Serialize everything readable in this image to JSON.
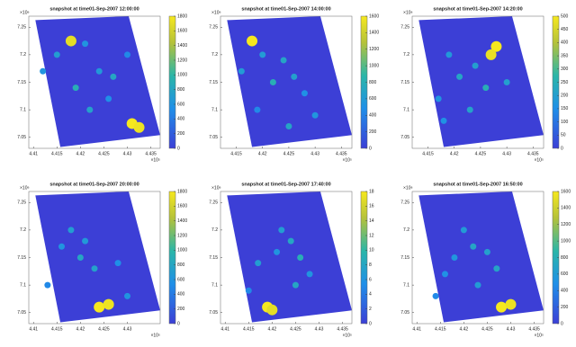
{
  "chart_data": [
    {
      "type": "scatter",
      "title": "snapshot at time01-Sep-2007 12:00:00",
      "x_exponent": "×10⁵",
      "y_exponent": "×10⁶",
      "xlim": [
        4.409,
        4.437
      ],
      "ylim": [
        7.03,
        7.27
      ],
      "xticks": [
        4.41,
        4.415,
        4.42,
        4.425,
        4.43,
        4.435
      ],
      "yticks": [
        7.05,
        7.1,
        7.15,
        7.2,
        7.25
      ],
      "clim": [
        0,
        1800
      ],
      "cticks": [
        0,
        200,
        400,
        600,
        800,
        1000,
        1200,
        1400,
        1600,
        1800
      ],
      "x": [
        4.431,
        4.4325,
        4.418,
        4.421,
        4.415,
        4.424,
        4.427,
        4.419,
        4.412,
        4.426,
        4.422,
        4.43
      ],
      "y": [
        7.075,
        7.068,
        7.225,
        7.22,
        7.2,
        7.17,
        7.16,
        7.14,
        7.17,
        7.12,
        7.1,
        7.2
      ],
      "values": [
        1800,
        1750,
        1700,
        600,
        700,
        650,
        800,
        900,
        600,
        550,
        750,
        500
      ]
    },
    {
      "type": "scatter",
      "title": "snapshot at time01-Sep-2007 14:00:00",
      "x_exponent": "×10⁵",
      "y_exponent": "×10⁶",
      "xlim": [
        4.412,
        4.437
      ],
      "ylim": [
        7.03,
        7.27
      ],
      "xticks": [
        4.415,
        4.42,
        4.425,
        4.43,
        4.435
      ],
      "yticks": [
        7.05,
        7.1,
        7.15,
        7.2,
        7.25
      ],
      "clim": [
        0,
        1600
      ],
      "cticks": [
        0,
        200,
        400,
        600,
        800,
        1000,
        1200,
        1400,
        1600
      ],
      "x": [
        4.418,
        4.42,
        4.424,
        4.426,
        4.422,
        4.428,
        4.416,
        4.43,
        4.425,
        4.419
      ],
      "y": [
        7.225,
        7.2,
        7.19,
        7.16,
        7.15,
        7.13,
        7.17,
        7.09,
        7.07,
        7.1
      ],
      "values": [
        1600,
        600,
        700,
        650,
        800,
        500,
        600,
        550,
        700,
        450
      ]
    },
    {
      "type": "scatter",
      "title": "snapshot at time01-Sep-2007 14:20:00",
      "x_exponent": "×10⁵",
      "y_exponent": "×10⁶",
      "xlim": [
        4.412,
        4.437
      ],
      "ylim": [
        7.03,
        7.27
      ],
      "xticks": [
        4.415,
        4.42,
        4.425,
        4.43,
        4.435
      ],
      "yticks": [
        7.05,
        7.1,
        7.15,
        7.2,
        7.25
      ],
      "clim": [
        0,
        500
      ],
      "cticks": [
        0,
        50,
        100,
        150,
        200,
        250,
        300,
        350,
        400,
        450,
        500
      ],
      "x": [
        4.428,
        4.427,
        4.424,
        4.421,
        4.419,
        4.426,
        4.43,
        4.417,
        4.423,
        4.418
      ],
      "y": [
        7.215,
        7.2,
        7.18,
        7.16,
        7.2,
        7.14,
        7.15,
        7.12,
        7.1,
        7.08
      ],
      "values": [
        500,
        480,
        200,
        220,
        180,
        250,
        200,
        170,
        210,
        160
      ]
    },
    {
      "type": "scatter",
      "title": "snapshot at time01-Sep-2007 20:00:00",
      "x_exponent": "×10⁵",
      "y_exponent": "×10⁶",
      "xlim": [
        4.409,
        4.437
      ],
      "ylim": [
        7.03,
        7.27
      ],
      "xticks": [
        4.41,
        4.415,
        4.42,
        4.425,
        4.43
      ],
      "yticks": [
        7.05,
        7.1,
        7.15,
        7.2,
        7.25
      ],
      "clim": [
        0,
        1800
      ],
      "cticks": [
        0,
        200,
        400,
        600,
        800,
        1000,
        1200,
        1400,
        1600,
        1800
      ],
      "x": [
        4.424,
        4.426,
        4.418,
        4.421,
        4.42,
        4.416,
        4.423,
        4.428,
        4.413,
        4.43
      ],
      "y": [
        7.06,
        7.065,
        7.2,
        7.18,
        7.15,
        7.17,
        7.13,
        7.14,
        7.1,
        7.08
      ],
      "values": [
        1800,
        1750,
        700,
        650,
        800,
        600,
        750,
        550,
        500,
        600
      ]
    },
    {
      "type": "scatter",
      "title": "snapshot at time01-Sep-2007 17:40:00",
      "x_exponent": "×10⁵",
      "y_exponent": "×10⁶",
      "xlim": [
        4.409,
        4.437
      ],
      "ylim": [
        7.03,
        7.27
      ],
      "xticks": [
        4.41,
        4.415,
        4.42,
        4.425,
        4.43,
        4.435
      ],
      "yticks": [
        7.05,
        7.1,
        7.15,
        7.2,
        7.25
      ],
      "clim": [
        0,
        18
      ],
      "cticks": [
        0,
        2,
        4,
        6,
        8,
        10,
        12,
        14,
        16,
        18
      ],
      "x": [
        4.419,
        4.42,
        4.422,
        4.424,
        4.421,
        4.426,
        4.417,
        4.428,
        4.425,
        4.415
      ],
      "y": [
        7.06,
        7.055,
        7.2,
        7.18,
        7.16,
        7.15,
        7.14,
        7.12,
        7.1,
        7.09
      ],
      "values": [
        18,
        17,
        7,
        8,
        6,
        9,
        7,
        6,
        8,
        5
      ]
    },
    {
      "type": "scatter",
      "title": "snapshot at time01-Sep-2007 16:50:00",
      "x_exponent": "×10⁵",
      "y_exponent": "×10⁶",
      "xlim": [
        4.409,
        4.437
      ],
      "ylim": [
        7.03,
        7.27
      ],
      "xticks": [
        4.41,
        4.415,
        4.42,
        4.425,
        4.43,
        4.435
      ],
      "yticks": [
        7.05,
        7.1,
        7.15,
        7.2,
        7.25
      ],
      "clim": [
        0,
        1600
      ],
      "cticks": [
        0,
        200,
        400,
        600,
        800,
        1000,
        1200,
        1400,
        1600
      ],
      "x": [
        4.428,
        4.43,
        4.42,
        4.422,
        4.425,
        4.418,
        4.427,
        4.416,
        4.423,
        4.414
      ],
      "y": [
        7.06,
        7.065,
        7.2,
        7.17,
        7.16,
        7.15,
        7.13,
        7.12,
        7.1,
        7.08
      ],
      "values": [
        1600,
        1550,
        600,
        700,
        650,
        550,
        700,
        500,
        600,
        450
      ]
    }
  ]
}
